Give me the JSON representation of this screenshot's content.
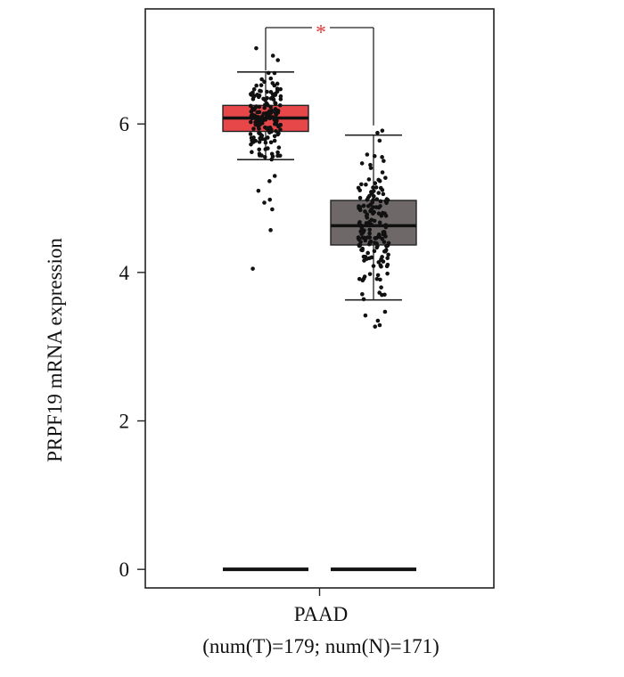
{
  "chart_data": {
    "type": "box",
    "ylabel": "PRPF19 mRNA expression",
    "category": "PAAD",
    "caption": "(num(T)=179; num(N)=171)",
    "ylim": [
      -0.25,
      7.55
    ],
    "yticks": [
      0,
      2,
      4,
      6
    ],
    "grid": false,
    "significance": "*",
    "significance_color": "#e03c3c",
    "series": [
      {
        "group": "T",
        "n": 179,
        "fill": "#e8474a",
        "whisker_low": 5.52,
        "q1": 5.9,
        "median": 6.08,
        "q3": 6.25,
        "whisker_high": 6.7,
        "outliers": [
          7.02,
          6.92,
          6.86,
          5.3,
          5.23,
          5.1,
          4.98,
          4.94,
          4.85,
          4.57,
          4.05
        ]
      },
      {
        "group": "N",
        "n": 171,
        "fill": "#6e6868",
        "whisker_low": 3.63,
        "q1": 4.37,
        "median": 4.63,
        "q3": 4.97,
        "whisker_high": 5.85,
        "outliers": [
          5.91,
          5.88,
          3.47,
          3.42,
          3.35,
          3.29,
          3.27
        ]
      }
    ],
    "zero_line": 0
  }
}
